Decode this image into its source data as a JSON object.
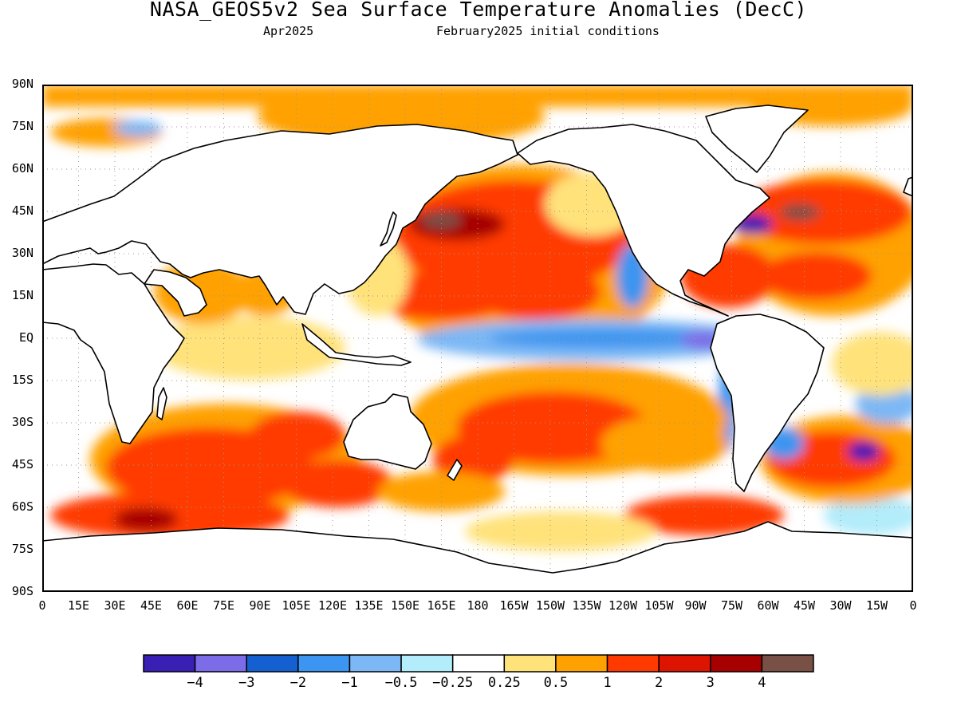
{
  "header": {
    "title": "NASA_GEOS5v2 Sea Surface Temperature Anomalies (DecC)",
    "subtitle_left": "Apr2025",
    "subtitle_right": "February2025 initial conditions"
  },
  "map": {
    "lat_labels": [
      "90N",
      "75N",
      "60N",
      "45N",
      "30N",
      "15N",
      "EQ",
      "15S",
      "30S",
      "45S",
      "60S",
      "75S",
      "90S"
    ],
    "lon_labels": [
      "0",
      "15E",
      "30E",
      "45E",
      "60E",
      "75E",
      "90E",
      "105E",
      "120E",
      "135E",
      "150E",
      "165E",
      "180",
      "165W",
      "150W",
      "135W",
      "120W",
      "105W",
      "90W",
      "75W",
      "60W",
      "45W",
      "30W",
      "15W",
      "0"
    ],
    "lon_range": [
      0,
      360
    ],
    "lat_range": [
      -90,
      90
    ],
    "grid": true
  },
  "colorbar": {
    "colors": [
      "#3a1fb5",
      "#7c6ce8",
      "#1560d0",
      "#3c95f0",
      "#7cb8f5",
      "#b3ecfa",
      "#ffffff",
      "#ffe27a",
      "#ffa100",
      "#ff3a00",
      "#dd1400",
      "#a60000",
      "#785046"
    ],
    "labels": [
      "−4",
      "−3",
      "−2",
      "−1",
      "−0.5",
      "−0.25",
      "0.25",
      "0.5",
      "1",
      "2",
      "3",
      "4"
    ]
  }
}
